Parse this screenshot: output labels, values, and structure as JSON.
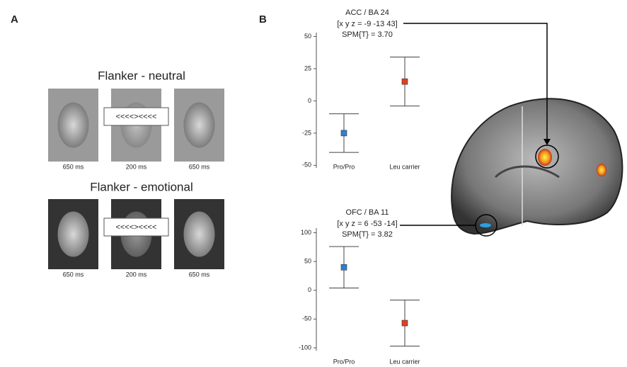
{
  "panel_labels": [
    "A",
    "B"
  ],
  "flanker": [
    {
      "title": "Flanker - neutral",
      "stimulus": "<<<<><<<<",
      "durations": [
        "650 ms",
        "200 ms",
        "650 ms"
      ]
    },
    {
      "title": "Flanker - emotional",
      "stimulus": "<<<<><<<<",
      "durations": [
        "650 ms",
        "200 ms",
        "650 ms"
      ]
    }
  ],
  "chart_data": [
    {
      "type": "errorbar",
      "annotation": [
        "ACC / BA 24",
        "[x y z = -9 -13 43]",
        "SPM{T} = 3.70"
      ],
      "categories": [
        "Pro/Pro",
        "Leu carrier"
      ],
      "values": [
        -25,
        15
      ],
      "errors": [
        15,
        19
      ],
      "colors": [
        "#2f7fd8",
        "#e0401f"
      ],
      "ylim": [
        -52,
        53
      ],
      "yticks": [
        50,
        25,
        0,
        -25,
        -50
      ]
    },
    {
      "type": "errorbar",
      "annotation": [
        "OFC / BA 11",
        "[x y z = 6 -53 -14]",
        "SPM{T} = 3.82"
      ],
      "categories": [
        "Pro/Pro",
        "Leu carrier"
      ],
      "values": [
        40,
        -57
      ],
      "errors": [
        36,
        40
      ],
      "colors": [
        "#2f7fd8",
        "#e0401f"
      ],
      "ylim": [
        -105,
        108
      ],
      "yticks": [
        100,
        50,
        0,
        -50,
        -100
      ]
    }
  ]
}
